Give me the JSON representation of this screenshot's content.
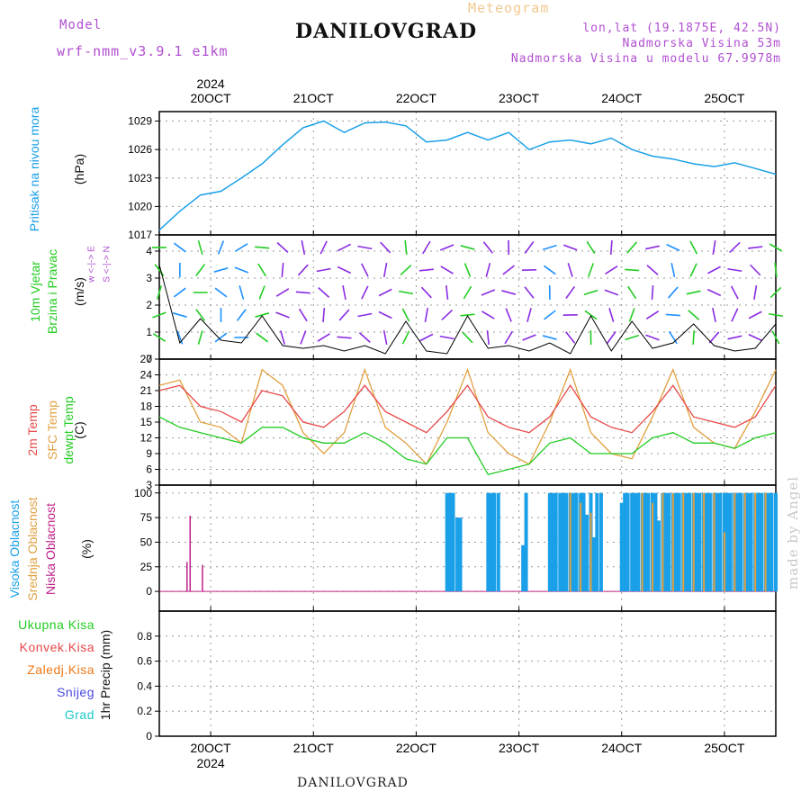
{
  "header": {
    "model_label": "Model",
    "model_value": "wrf-nmm_v3.9.1  e1km",
    "meteogram": "Meteogram",
    "city": "DANILOVGRAD",
    "lonlat": "lon,lat (19.1875E, 42.5N)",
    "elevation": "Nadmorska Visina 53m",
    "model_elevation": "Nadmorska Visina u modelu 67.9978m"
  },
  "footer": {
    "city": "DANILOVGRAD",
    "watermark": "made by Angel"
  },
  "time_axis": {
    "year": "2024",
    "labels": [
      "20OCT",
      "21OCT",
      "22OCT",
      "23OCT",
      "24OCT",
      "25OCT"
    ],
    "day_positions": [
      1,
      2,
      3,
      4,
      5,
      6
    ]
  },
  "panels": {
    "pressure": {
      "label": "Pritisak na nivou mora",
      "unit": "(hPa)",
      "ticks": [
        "1017",
        "1020",
        "1023",
        "1026",
        "1029"
      ]
    },
    "wind": {
      "label1": "10m Vjetar",
      "label2": "Brzina i Pravac",
      "unit": "(m/s)",
      "compass": "w <-|-> E",
      "compass2": "S <-|-> N",
      "ticks": [
        "0",
        "1",
        "2",
        "3",
        "4"
      ]
    },
    "temp": {
      "label1": "2m Temp",
      "label2": "SFC Temp",
      "label3": "dewpt Temp",
      "unit": "(C)",
      "ticks": [
        "3",
        "6",
        "9",
        "12",
        "15",
        "18",
        "21",
        "24",
        "27"
      ]
    },
    "cloud": {
      "label1": "Visoka Oblacnost",
      "label2": "Srednja Oblacnost",
      "label3": "Niska Oblacnost",
      "unit": "(%)",
      "ticks": [
        "0",
        "25",
        "50",
        "75",
        "100"
      ]
    },
    "precip": {
      "unit": "1hr Precip (mm)",
      "legend": [
        "Ukupna Kisa",
        "Konvek.Kisa",
        "Zaledj.Kisa",
        "Snijeg",
        "Grad"
      ],
      "ticks": [
        "0",
        "0.2",
        "0.4",
        "0.6",
        "0.8"
      ]
    }
  },
  "colors": {
    "pressure": "#1aa0e8",
    "temp2m": "#e84848",
    "sfc": "#e0a040",
    "dewpt": "#22cc22",
    "cloud_high": "#1aa0e8",
    "cloud_mid": "#e0a040",
    "cloud_low": "#c0208a",
    "rain": "#22cc22",
    "conv": "#e84848",
    "frz": "#f07818",
    "snow": "#4848e0",
    "hail": "#20c8c8",
    "wind_slow": "#8a2be2",
    "wind_mid": "#1e90ff",
    "wind_fast": "#22cc22"
  },
  "chart_data": [
    {
      "type": "line",
      "title": "Pritisak na nivou mora",
      "ylabel": "(hPa)",
      "ylim": [
        1017,
        1030
      ],
      "x": [
        0.5,
        0.7,
        0.9,
        1.1,
        1.3,
        1.5,
        1.7,
        1.9,
        2.1,
        2.3,
        2.5,
        2.7,
        2.9,
        3.1,
        3.3,
        3.5,
        3.7,
        3.9,
        4.1,
        4.3,
        4.5,
        4.7,
        4.9,
        5.1,
        5.3,
        5.5,
        5.7,
        5.9,
        6.1,
        6.3,
        6.5
      ],
      "series": [
        {
          "values": [
            1017.5,
            1019.5,
            1021.2,
            1021.6,
            1023.0,
            1024.5,
            1026.5,
            1028.3,
            1029.0,
            1027.8,
            1028.8,
            1028.9,
            1028.5,
            1026.8,
            1027.0,
            1027.8,
            1027.0,
            1027.8,
            1026.0,
            1026.8,
            1027.0,
            1026.6,
            1027.2,
            1026.0,
            1025.3,
            1025.0,
            1024.5,
            1024.2,
            1024.6,
            1024.0,
            1023.4
          ]
        }
      ]
    },
    {
      "type": "line",
      "title": "10m Vjetar",
      "ylabel": "(m/s)",
      "ylim": [
        0,
        4.6
      ],
      "x": [
        0.5,
        0.7,
        0.9,
        1.1,
        1.3,
        1.5,
        1.7,
        1.9,
        2.1,
        2.3,
        2.5,
        2.7,
        2.9,
        3.1,
        3.3,
        3.5,
        3.7,
        3.9,
        4.1,
        4.3,
        4.5,
        4.7,
        4.9,
        5.1,
        5.3,
        5.5,
        5.7,
        5.9,
        6.1,
        6.3,
        6.5
      ],
      "series": [
        {
          "values": [
            3.5,
            0.6,
            1.5,
            0.7,
            0.6,
            1.6,
            0.5,
            0.4,
            0.5,
            0.3,
            0.5,
            0.2,
            1.4,
            0.3,
            0.2,
            1.6,
            0.4,
            0.5,
            0.3,
            0.6,
            0.2,
            1.6,
            0.3,
            1.4,
            0.4,
            0.6,
            1.3,
            0.5,
            0.3,
            0.4,
            1.3
          ]
        }
      ]
    },
    {
      "type": "line",
      "title": "2m Temp / SFC Temp / dewpt Temp",
      "ylabel": "(C)",
      "ylim": [
        3,
        27
      ],
      "x": [
        0.5,
        0.7,
        0.9,
        1.1,
        1.3,
        1.5,
        1.7,
        1.9,
        2.1,
        2.3,
        2.5,
        2.7,
        2.9,
        3.1,
        3.3,
        3.5,
        3.7,
        3.9,
        4.1,
        4.3,
        4.5,
        4.7,
        4.9,
        5.1,
        5.3,
        5.5,
        5.7,
        5.9,
        6.1,
        6.3,
        6.5
      ],
      "series": [
        {
          "name": "2m Temp",
          "values": [
            21,
            22,
            18,
            17,
            15,
            21,
            20,
            15,
            14,
            17,
            22,
            17,
            15,
            13,
            17,
            22,
            16,
            14,
            13,
            16,
            22,
            16,
            14,
            13,
            17,
            22,
            16,
            15,
            14,
            16,
            22
          ]
        },
        {
          "name": "SFC Temp",
          "values": [
            22,
            23,
            15,
            14,
            11,
            25,
            22,
            13,
            9,
            13,
            25,
            14,
            11,
            7,
            15,
            25,
            13,
            9,
            7,
            15,
            25,
            13,
            9,
            8,
            16,
            25,
            14,
            11,
            10,
            17,
            25
          ]
        },
        {
          "name": "dewpt Temp",
          "values": [
            16,
            14,
            13,
            12,
            11,
            14,
            14,
            12,
            11,
            11,
            13,
            11,
            8,
            7,
            12,
            12,
            5,
            6,
            7,
            11,
            12,
            9,
            9,
            9,
            12,
            13,
            11,
            11,
            10,
            12,
            13
          ]
        }
      ]
    },
    {
      "type": "bar",
      "title": "Oblacnost",
      "ylabel": "(%)",
      "ylim": [
        0,
        100
      ],
      "series": [
        {
          "name": "Visoka Oblacnost",
          "x": [
            3.3,
            3.33,
            3.36,
            3.4,
            3.43,
            3.7,
            3.73,
            3.76,
            3.8,
            4.04,
            4.07,
            4.3,
            4.33,
            4.36,
            4.4,
            4.43,
            4.46,
            4.5,
            4.53,
            4.56,
            4.6,
            4.63,
            4.66,
            4.7,
            4.73,
            4.76,
            4.8,
            5.0,
            5.03,
            5.06,
            5.1,
            5.13,
            5.16,
            5.2,
            5.23,
            5.26,
            5.3,
            5.33,
            5.36,
            5.4,
            5.43,
            5.46,
            5.5,
            5.53,
            5.56,
            5.6,
            5.63,
            5.66,
            5.7,
            5.73,
            5.76,
            5.8,
            5.83,
            5.86,
            5.9,
            5.93,
            5.96,
            6.0,
            6.03,
            6.06,
            6.1,
            6.13,
            6.16,
            6.2,
            6.23,
            6.26,
            6.3,
            6.33,
            6.36,
            6.4,
            6.43,
            6.46,
            6.5
          ],
          "values": [
            100,
            100,
            100,
            75,
            75,
            100,
            100,
            100,
            100,
            47,
            100,
            100,
            100,
            100,
            100,
            100,
            100,
            100,
            100,
            100,
            100,
            100,
            78,
            100,
            55,
            100,
            100,
            90,
            100,
            100,
            100,
            100,
            100,
            100,
            100,
            100,
            100,
            100,
            72,
            100,
            100,
            100,
            100,
            100,
            100,
            100,
            100,
            100,
            100,
            100,
            100,
            100,
            100,
            100,
            100,
            100,
            100,
            100,
            100,
            100,
            100,
            100,
            100,
            100,
            100,
            100,
            100,
            100,
            100,
            100,
            100,
            100,
            100
          ]
        },
        {
          "name": "Srednja Oblacnost",
          "x": [
            4.5,
            4.6,
            4.7,
            5.2,
            5.3,
            5.4,
            5.5,
            5.6,
            5.7,
            5.8,
            5.9,
            6.0,
            6.1,
            6.2,
            6.3,
            6.4
          ],
          "values": [
            100,
            90,
            80,
            100,
            90,
            100,
            100,
            100,
            100,
            100,
            100,
            60,
            100,
            100,
            100,
            100
          ]
        },
        {
          "name": "Niska Oblacnost",
          "x": [
            0.77,
            0.8,
            0.92
          ],
          "values": [
            30,
            77,
            27
          ]
        }
      ]
    },
    {
      "type": "bar",
      "title": "1hr Precip",
      "ylabel": "1hr Precip (mm)",
      "ylim": [
        0,
        1
      ],
      "series": [
        {
          "name": "Ukupna Kisa",
          "values": []
        }
      ]
    }
  ]
}
